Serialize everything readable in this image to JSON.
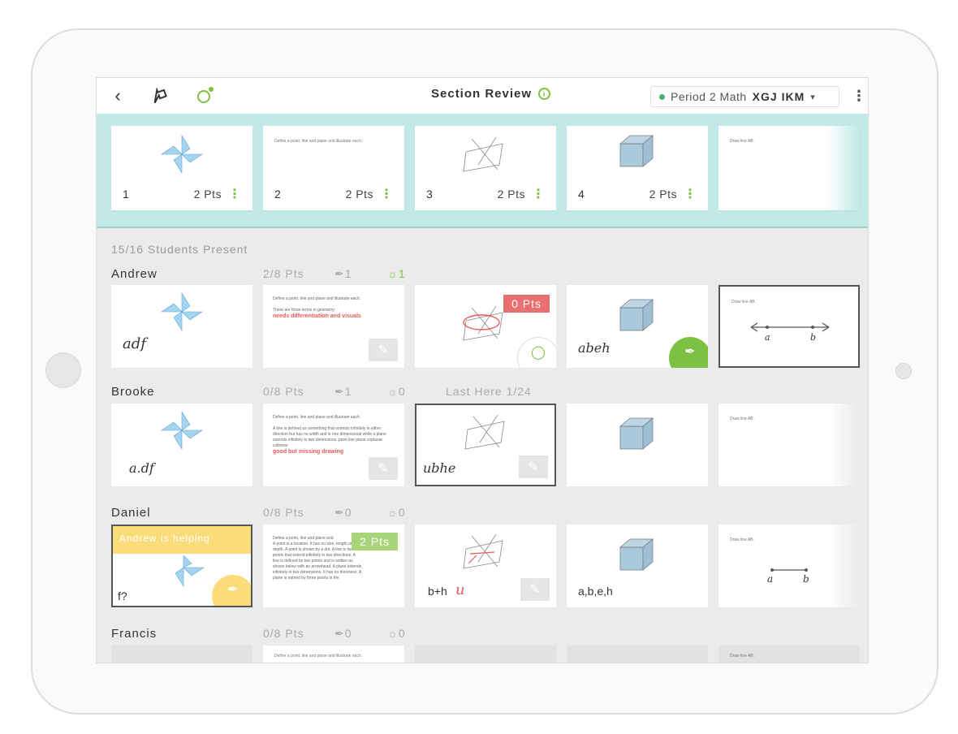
{
  "header": {
    "title": "Section Review",
    "info_icon": "info-icon",
    "period_label": "Period 2 Math",
    "period_code": "XGJ IKM",
    "dropdown_caret": "▾"
  },
  "questions": [
    {
      "num": "1",
      "pts": "2 Pts"
    },
    {
      "num": "2",
      "pts": "2 Pts",
      "text": "Define a point, line and plane and illustrate each."
    },
    {
      "num": "3",
      "pts": "2 Pts"
    },
    {
      "num": "4",
      "pts": "2 Pts"
    },
    {
      "num": "",
      "pts": "",
      "text": "Draw line AB."
    }
  ],
  "present": "15/16 Students Present",
  "students": [
    {
      "name": "Andrew",
      "pts": "2/8 Pts",
      "hands": "1",
      "helps": "1",
      "last": ""
    },
    {
      "name": "Brooke",
      "pts": "0/8 Pts",
      "hands": "1",
      "helps": "0",
      "last": "Last Here 1/24"
    },
    {
      "name": "Daniel",
      "pts": "0/8 Pts",
      "hands": "0",
      "helps": "0",
      "last": ""
    },
    {
      "name": "Francis",
      "pts": "0/8 Pts",
      "hands": "0",
      "helps": "0",
      "last": ""
    }
  ],
  "answers": {
    "andrew": {
      "a1": "adf",
      "a2_prompt": "Define a point, line and plane and illustrate each.",
      "a2_body": "There are three terms in geometry.",
      "a2_feedback": "needs differentiation and visuals",
      "a3_badge": "0 Pts",
      "a4": "abeh",
      "a5_text": "Draw line AB.",
      "a5_a": "a",
      "a5_b": "b"
    },
    "brooke": {
      "a1": "a.df",
      "a2_prompt": "Define a point, line and plane and illustrate each.",
      "a2_body": "A line is defined as something that extends infinitely in either direction but has no width and is one dimensional while a plane extends infinitely in two dimensions. point line plane coplanar collinear",
      "a2_feedback": "good but missing drawing",
      "a3": "ubhe",
      "a5_text": "Draw line AB."
    },
    "daniel": {
      "helping": "Andrew is helping",
      "a1": "f?",
      "a2_prompt": "Define a point, line and plane and",
      "a2_badge": "2 Pts",
      "a2_body": "A point is a location. It has no size, length and no depth. A point is shown by a dot. A line is two points that extend infinitely in two directions. A line is defined by two points and is written as shown below with an arrowhead. A plane extends infinitely in two dimensions. It has no thickness. A plane is named by three points in the",
      "a3": "b+h",
      "a3_mark": "u",
      "a4": "a,b,e,h",
      "a5_text": "Draw line AB.",
      "a5_a": "a",
      "a5_b": "b"
    },
    "francis": {
      "a2_prompt": "Define a point, line and plane and illustrate each.",
      "a5_text": "Draw line AB."
    }
  },
  "colors": {
    "strip": "#c2e8e8",
    "green": "#7cc142",
    "red": "#e85a5a",
    "badge_green": "#a9d57a",
    "yellow": "#fadd7a"
  }
}
